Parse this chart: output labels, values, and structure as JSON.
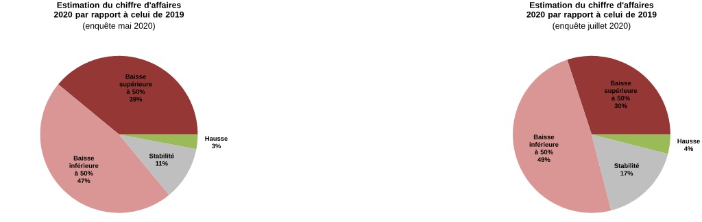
{
  "chart_data": [
    {
      "type": "pie",
      "title": "Estimation du chiffre d'affaires 2020 par rapport à celui de 2019",
      "subtitle": "(enquête mai 2020)",
      "categories": [
        "Baisse supérieure à 50%",
        "Baisse inférieure à 50%",
        "Stabilité",
        "Hausse"
      ],
      "values": [
        39,
        47,
        11,
        3
      ],
      "value_labels": [
        "39%",
        "47%",
        "11%",
        "3%"
      ],
      "colors": [
        "#953735",
        "#d99694",
        "#bfbfbf",
        "#9bbb59"
      ]
    },
    {
      "type": "pie",
      "title": "Estimation du chiffre d'affaires 2020 par rapport à celui de 2019",
      "subtitle": "(enquête juillet 2020)",
      "categories": [
        "Baisse supérieure à 50%",
        "Baisse inférieure à 50%",
        "Stabilité",
        "Hausse"
      ],
      "values": [
        30,
        49,
        17,
        4
      ],
      "value_labels": [
        "30%",
        "49%",
        "17%",
        "4%"
      ],
      "colors": [
        "#953735",
        "#d99694",
        "#bfbfbf",
        "#9bbb59"
      ]
    }
  ]
}
